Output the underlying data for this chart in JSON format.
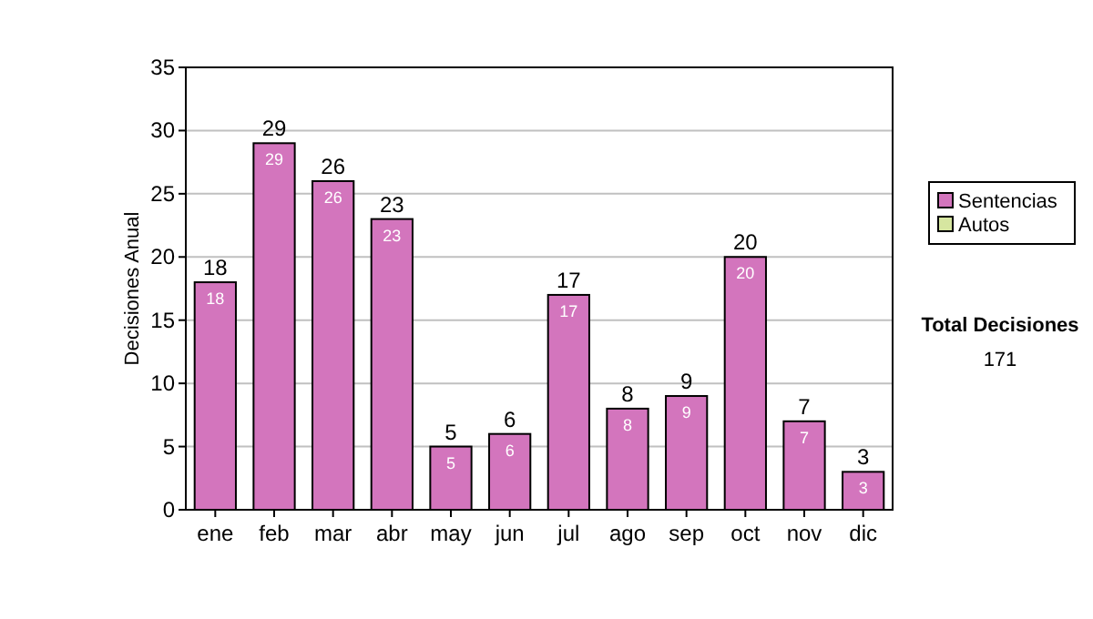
{
  "chart_data": {
    "type": "bar",
    "stacked": true,
    "ylabel": "Decisiones Anual",
    "categories": [
      "ene",
      "feb",
      "mar",
      "abr",
      "may",
      "jun",
      "jul",
      "ago",
      "sep",
      "oct",
      "nov",
      "dic"
    ],
    "series": [
      {
        "name": "Sentencias",
        "color": "#d375bd",
        "values": [
          18,
          29,
          26,
          23,
          5,
          6,
          17,
          8,
          9,
          20,
          7,
          3
        ],
        "value_labels": [
          "18",
          "29",
          "26",
          "23",
          "5",
          "6",
          "17",
          "8",
          "9",
          "20",
          "7",
          "3"
        ]
      },
      {
        "name": "Autos",
        "color": "#d6e6a0",
        "values": [
          0,
          0,
          0,
          0,
          0,
          0,
          0,
          0,
          0,
          0,
          0,
          0
        ]
      }
    ],
    "totals": [
      "18",
      "29",
      "26",
      "23",
      "5",
      "6",
      "17",
      "8",
      "9",
      "20",
      "7",
      "3"
    ],
    "ylim": [
      0,
      35
    ],
    "yticks": [
      0,
      5,
      10,
      15,
      20,
      25,
      30,
      35
    ],
    "grid": "y",
    "legend": "right",
    "annotations": [
      "Total Decisiones",
      "171"
    ]
  }
}
